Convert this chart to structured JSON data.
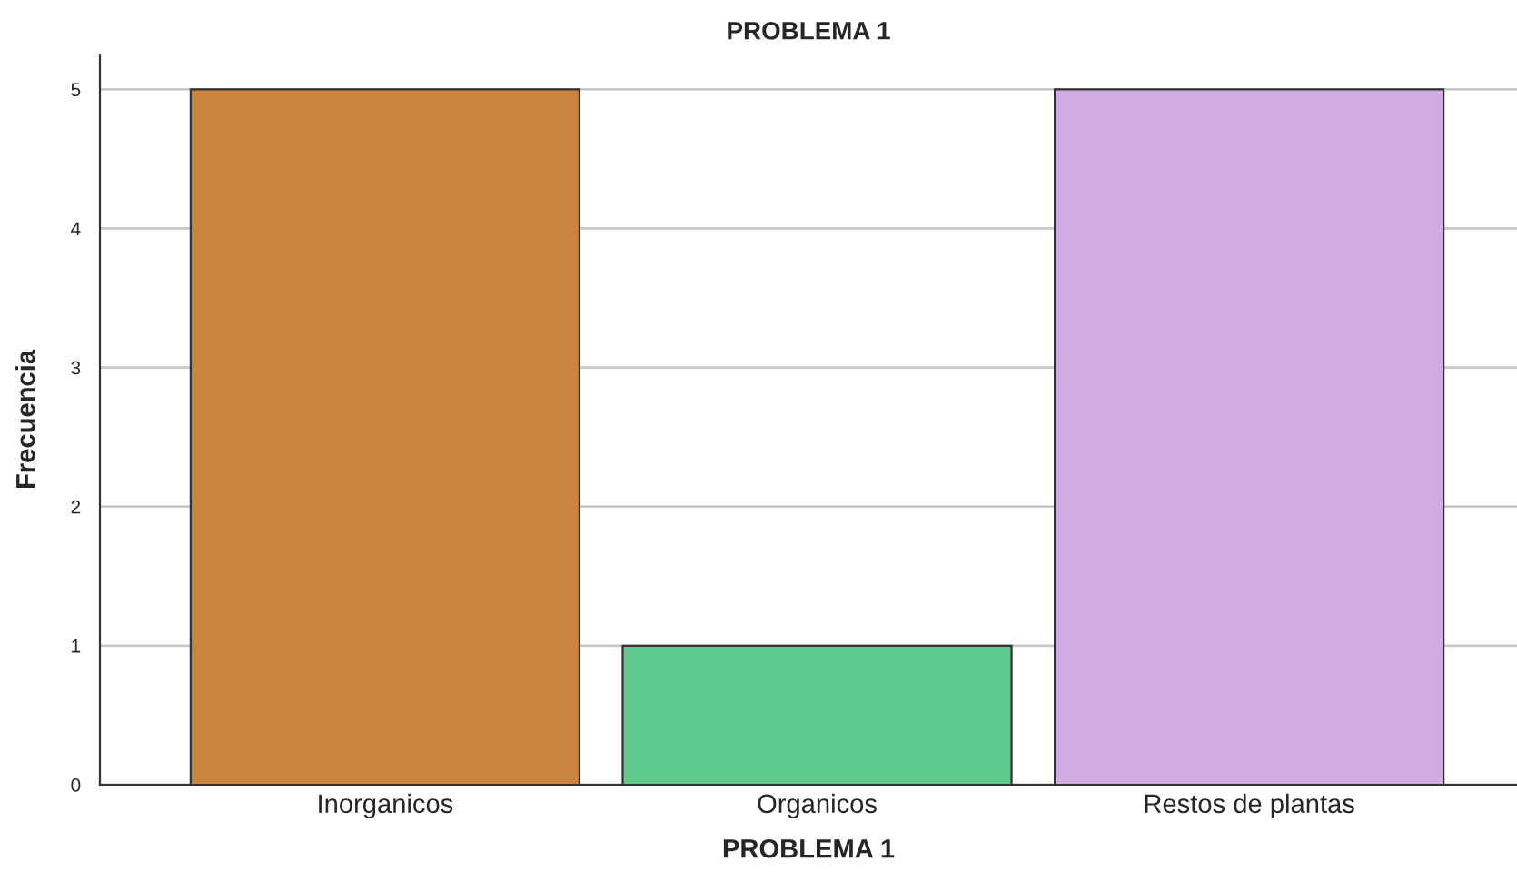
{
  "chart_data": {
    "type": "bar",
    "title": "PROBLEMA 1",
    "xlabel": "PROBLEMA 1",
    "ylabel": "Frecuencia",
    "categories": [
      "Inorganicos",
      "Organicos",
      "Restos de plantas"
    ],
    "values": [
      5,
      1,
      5
    ],
    "colors": [
      "#cb843e",
      "#5dc98a",
      "#d2aae4"
    ],
    "ylim": [
      0,
      5.25
    ],
    "yticks": [
      0,
      1,
      2,
      3,
      4,
      5
    ],
    "grid": "y"
  }
}
